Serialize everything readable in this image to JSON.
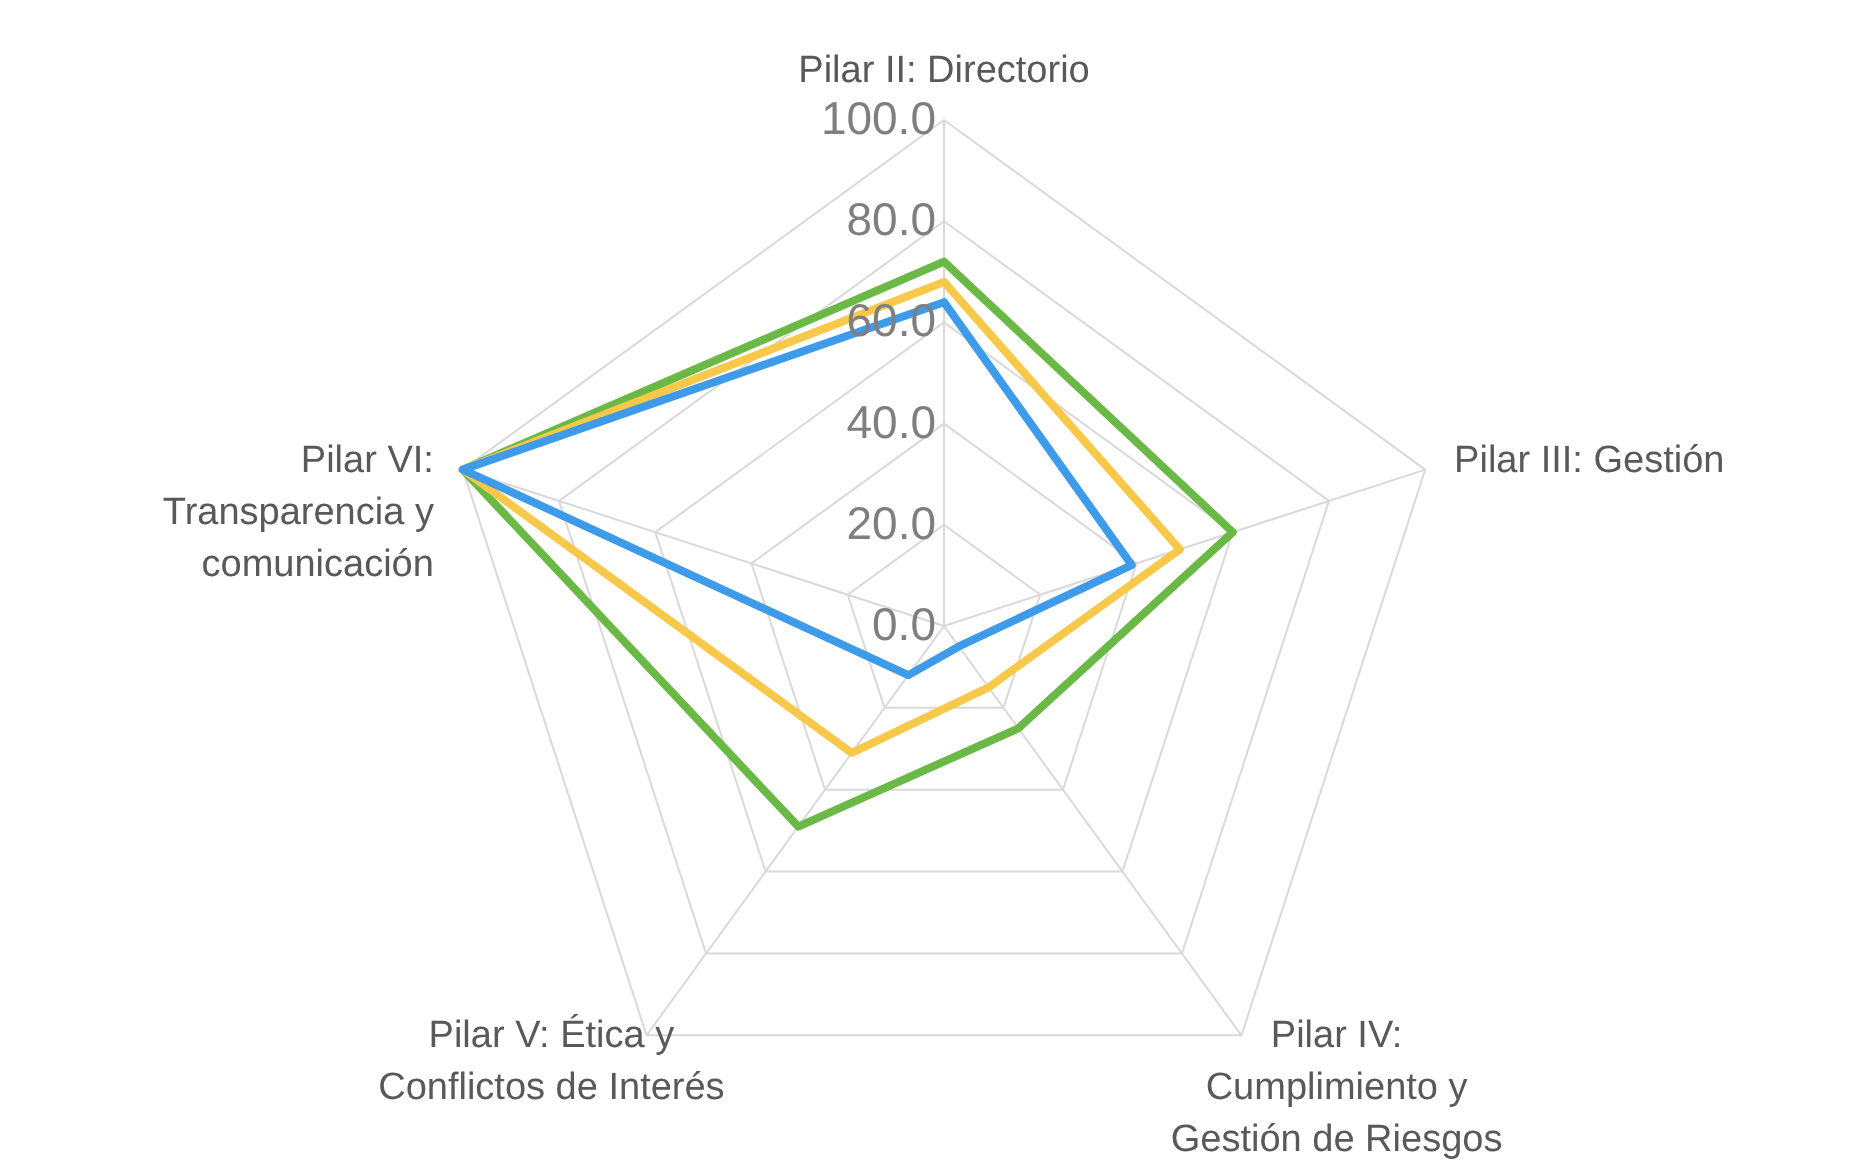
{
  "chart_data": {
    "type": "radar",
    "categories": [
      "Pilar II: Directorio",
      "Pilar III: Gestión",
      "Pilar IV:\nCumplimiento y\nGestión de Riesgos",
      "Pilar V: Ética y\nConflictos de Interés",
      "Pilar VI:\nTransparencia y\ncomunicación"
    ],
    "series": [
      {
        "color": "#6ab946",
        "values": [
          72,
          60,
          25,
          49,
          100
        ]
      },
      {
        "color": "#f8c84a",
        "values": [
          68,
          49,
          15,
          31,
          100
        ]
      },
      {
        "color": "#3d9be9",
        "values": [
          64,
          39,
          5,
          12,
          100
        ]
      }
    ],
    "ylim": [
      0,
      100
    ],
    "yticks": [
      {
        "value": 0,
        "label": "0.0"
      },
      {
        "value": 20,
        "label": "20.0"
      },
      {
        "value": 40,
        "label": "40.0"
      },
      {
        "value": 60,
        "label": "60.0"
      },
      {
        "value": 80,
        "label": "80.0"
      },
      {
        "value": 100,
        "label": "100.0"
      }
    ],
    "grid": true
  }
}
